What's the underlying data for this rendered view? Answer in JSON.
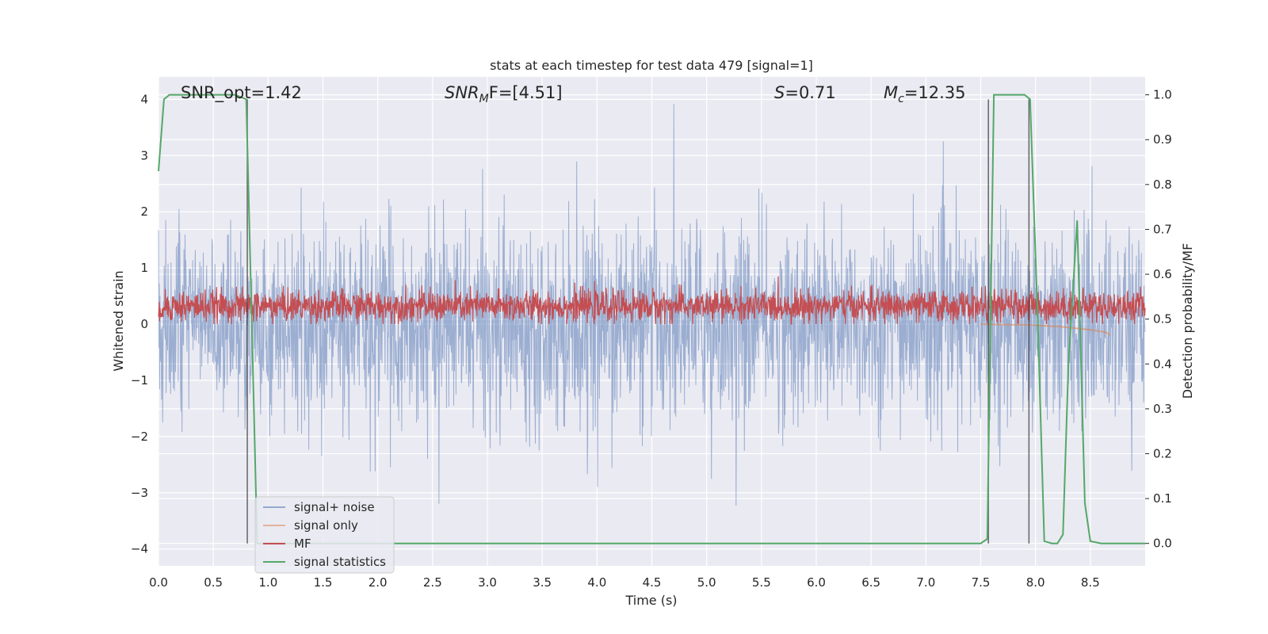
{
  "chart_data": {
    "type": "line",
    "title": "stats at each timestep for test data 479 [signal=1]",
    "xlabel": "Time (s)",
    "ylabel": "Whitened strain",
    "ylabel_right": "Detection probability/MF",
    "xlim": [
      0.0,
      9.0
    ],
    "ylim": [
      -4.3,
      4.4
    ],
    "ylim_right": [
      -0.05,
      1.04
    ],
    "x_ticks": [
      0.0,
      0.5,
      1.0,
      1.5,
      2.0,
      2.5,
      3.0,
      3.5,
      4.0,
      4.5,
      5.0,
      5.5,
      6.0,
      6.5,
      7.0,
      7.5,
      8.0,
      8.5
    ],
    "y_ticks": [
      -4,
      -3,
      -2,
      -1,
      0,
      1,
      2,
      3,
      4
    ],
    "y_ticks_right": [
      0.0,
      0.1,
      0.2,
      0.3,
      0.4,
      0.5,
      0.6,
      0.7,
      0.8,
      0.9,
      1.0
    ],
    "grid": true,
    "legend_position": "lower-left",
    "annotations": {
      "snr_opt": "SNR_opt=1.42",
      "snr_mf_prefix": "SNR",
      "snr_mf_sub": "M",
      "snr_mf_suffix": "F=[4.51]",
      "s_prefix": "S",
      "s_suffix": "=0.71",
      "mc_prefix": "M",
      "mc_sub": "c",
      "mc_suffix": "=12.35"
    },
    "series": [
      {
        "name": "signal+ noise",
        "color": "#4c72b0",
        "style": "dense noise trace, amplitude about ±1.5 with spikes to ±3.8"
      },
      {
        "name": "signal only",
        "color": "#dd8452",
        "x": [
          7.5,
          7.7,
          7.9,
          8.0,
          8.1,
          8.2,
          8.3,
          8.4,
          8.5,
          8.6,
          8.65,
          8.68
        ],
        "y": [
          0.0,
          -0.01,
          -0.01,
          -0.02,
          -0.03,
          -0.04,
          -0.06,
          -0.08,
          -0.1,
          -0.13,
          -0.15,
          -0.2
        ]
      },
      {
        "name": "MF",
        "color": "#c44e52",
        "style": "noise trace centered near 0.3 with range 0 to 0.85"
      },
      {
        "name": "signal statistics",
        "color": "#55a868",
        "axis": "right",
        "x": [
          0.0,
          0.05,
          0.1,
          0.15,
          0.2,
          0.3,
          0.4,
          0.5,
          0.6,
          0.7,
          0.8,
          0.85,
          0.9,
          1.0,
          1.5,
          2.0,
          3.0,
          4.0,
          5.0,
          6.0,
          7.0,
          7.5,
          7.56,
          7.62,
          7.7,
          7.8,
          7.9,
          7.95,
          8.02,
          8.08,
          8.15,
          8.2,
          8.25,
          8.3,
          8.38,
          8.45,
          8.5,
          8.6,
          8.8,
          9.0
        ],
        "y": [
          0.83,
          0.99,
          1.0,
          1.0,
          1.0,
          1.0,
          1.0,
          1.0,
          1.0,
          1.0,
          0.99,
          0.5,
          0.0,
          0.0,
          0.0,
          0.0,
          0.0,
          0.0,
          0.0,
          0.0,
          0.0,
          0.0,
          0.01,
          1.0,
          1.0,
          1.0,
          1.0,
          0.99,
          0.5,
          0.005,
          0.0,
          0.0,
          0.02,
          0.4,
          0.72,
          0.09,
          0.005,
          0.0,
          0.0,
          0.0
        ]
      }
    ],
    "vertical_markers": [
      0.81,
      7.57,
      7.94
    ]
  }
}
